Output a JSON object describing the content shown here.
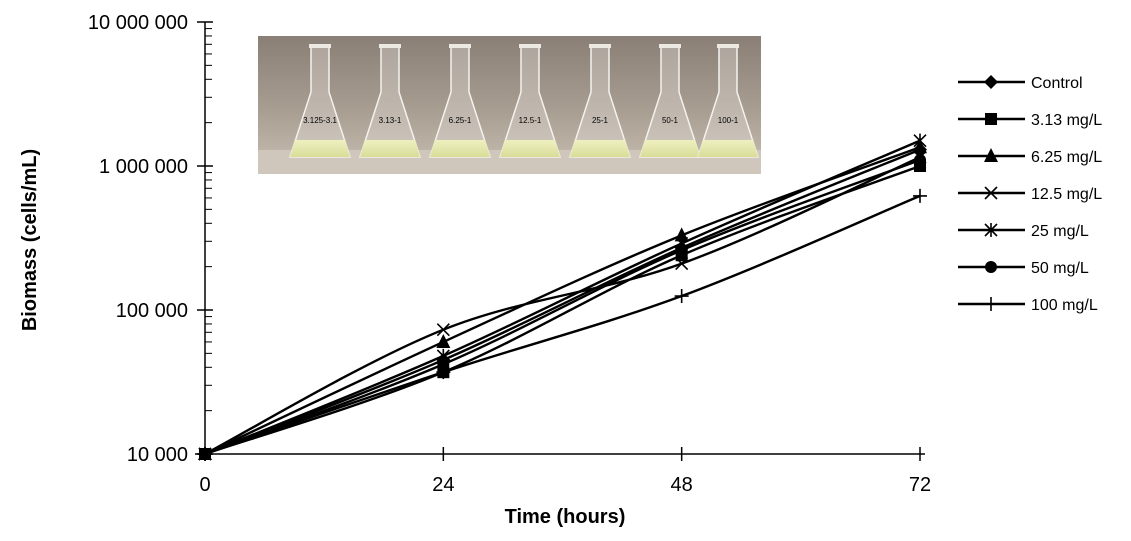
{
  "chart_data": {
    "type": "line",
    "title": "",
    "xlabel": "Time (hours)",
    "ylabel": "Biomass (cells/mL)",
    "x": [
      0,
      24,
      48,
      72
    ],
    "x_ticks": [
      "0",
      "24",
      "48",
      "72"
    ],
    "y_scale": "log",
    "ylim": [
      10000,
      10000000
    ],
    "y_ticks": [
      {
        "value": 10000,
        "label": "10 000"
      },
      {
        "value": 100000,
        "label": "100 000"
      },
      {
        "value": 1000000,
        "label": "1 000 000"
      },
      {
        "value": 10000000,
        "label": "10 000 000"
      }
    ],
    "grid": false,
    "legend_position": "right",
    "line_color": "#000000",
    "series": [
      {
        "name": "Control",
        "marker": "diamond",
        "values": [
          10000,
          45000,
          270000,
          1300000
        ]
      },
      {
        "name": "3.13 mg/L",
        "marker": "square",
        "values": [
          10000,
          37000,
          240000,
          1000000
        ]
      },
      {
        "name": "6.25 mg/L",
        "marker": "triangle",
        "values": [
          10000,
          60000,
          330000,
          1350000
        ]
      },
      {
        "name": "12.5 mg/L",
        "marker": "x",
        "values": [
          10000,
          73000,
          210000,
          1150000
        ]
      },
      {
        "name": "25 mg/L",
        "marker": "star",
        "values": [
          10000,
          48000,
          290000,
          1500000
        ]
      },
      {
        "name": "50 mg/L",
        "marker": "circle",
        "values": [
          10000,
          42000,
          260000,
          1100000
        ]
      },
      {
        "name": "100 mg/L",
        "marker": "plus",
        "values": [
          10000,
          37000,
          125000,
          620000
        ]
      }
    ]
  },
  "photo": {
    "flask_labels": [
      "3.125-3.1",
      "3.13-1",
      "6.25-1",
      "12.5-1",
      "25-1",
      "50-1",
      "100-1"
    ]
  }
}
